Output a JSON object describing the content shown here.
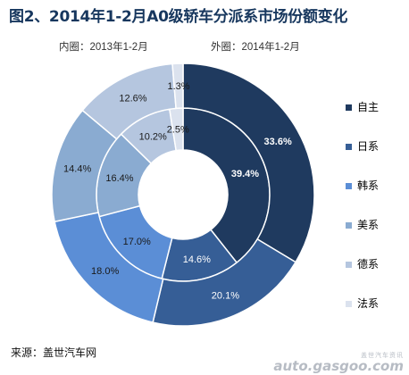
{
  "chart_data": {
    "type": "pie",
    "title": "图2、2014年1-2月A0级轿车分派系市场份额变化",
    "categories": [
      "自主",
      "日系",
      "韩系",
      "美系",
      "德系",
      "法系"
    ],
    "series": [
      {
        "name": "内圈：2013年1-2月",
        "values": [
          39.4,
          14.6,
          17.0,
          16.4,
          10.2,
          2.5
        ]
      },
      {
        "name": "外圈：2014年1-2月",
        "values": [
          33.6,
          20.1,
          18.0,
          14.4,
          12.6,
          1.3
        ]
      }
    ],
    "colors": [
      "#1f3a5f",
      "#365e96",
      "#5b8ed6",
      "#8aabd1",
      "#b5c6df",
      "#dbe2ee"
    ],
    "legend_position": "right",
    "value_suffix": "%"
  },
  "subtitle_inner": "内圈：2013年1-2月",
  "subtitle_outer": "外圈：2014年1-2月",
  "source": "来源：盖世汽车网",
  "watermark": {
    "top": "盖世汽车资讯",
    "main": "auto.gasgoo.com"
  }
}
